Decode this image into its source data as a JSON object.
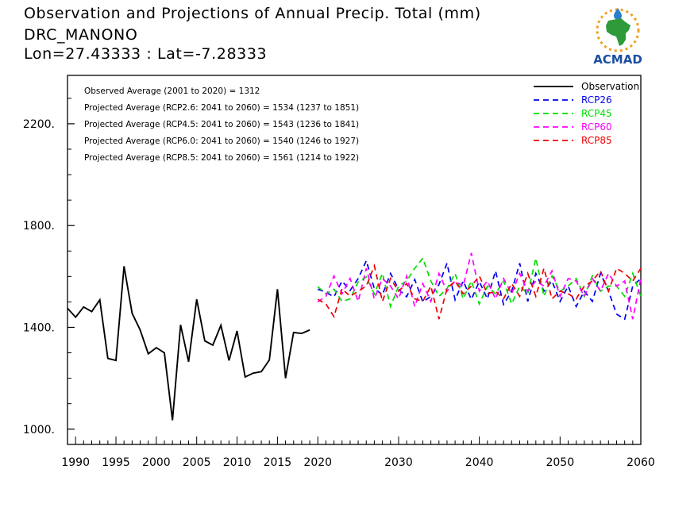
{
  "header": {
    "title": "Observation and Projections of Annual Precip. Total (mm)",
    "location": "DRC_MANONO",
    "coords": "Lon=27.43333 : Lat=-7.28333"
  },
  "logo": {
    "text": "ACMAD",
    "icon": "africa-sun-logo",
    "color": "#1a4fa0"
  },
  "chart_data": {
    "type": "line",
    "xlim": [
      1989,
      2060
    ],
    "ylim": [
      940,
      2390
    ],
    "yticks": [
      1000,
      1400,
      1800,
      2200
    ],
    "ytick_labels": [
      "1000.",
      "1400.",
      "1800.",
      "2200."
    ],
    "xticks": [
      1990,
      1995,
      2000,
      2005,
      2010,
      2015,
      2020,
      2030,
      2040,
      2050,
      2060
    ],
    "xtick_labels": [
      "1990",
      "1995",
      "2000",
      "2005",
      "2010",
      "2015",
      "2020",
      "2030",
      "2040",
      "2050",
      "2060"
    ],
    "legend_position": "top-right",
    "annotations": [
      "Observed Average (2001 to 2020) = 1312",
      "Projected Average (RCP2.6: 2041 to 2060) = 1534 (1237 to 1851)",
      "Projected Average (RCP4.5: 2041 to 2060) = 1543 (1236 to 1841)",
      "Projected Average (RCP6.0: 2041 to 2060) = 1540 (1246 to 1927)",
      "Projected Average (RCP8.5: 2041 to 2060) = 1561 (1214 to 1922)"
    ],
    "observation": {
      "name": "Observation",
      "color": "#000000",
      "x": [
        1989,
        1990,
        1991,
        1992,
        1993,
        1994,
        1995,
        1996,
        1997,
        1998,
        1999,
        2000,
        2001,
        2002,
        2003,
        2004,
        2005,
        2006,
        2007,
        2008,
        2009,
        2010,
        2011,
        2012,
        2013,
        2014,
        2015,
        2016,
        2017,
        2018,
        2019
      ],
      "y": [
        1475,
        1440,
        1480,
        1462,
        1508,
        1278,
        1270,
        1640,
        1455,
        1390,
        1296,
        1320,
        1300,
        1035,
        1410,
        1265,
        1510,
        1347,
        1330,
        1408,
        1270,
        1386,
        1205,
        1220,
        1226,
        1272,
        1550,
        1200,
        1380,
        1376,
        1390
      ]
    },
    "series": [
      {
        "name": "RCP26",
        "color": "#0000ee",
        "x": [
          2020,
          2021,
          2022,
          2023,
          2024,
          2025,
          2026,
          2027,
          2028,
          2029,
          2030,
          2031,
          2032,
          2033,
          2034,
          2035,
          2036,
          2037,
          2038,
          2039,
          2040,
          2041,
          2042,
          2043,
          2044,
          2045,
          2046,
          2047,
          2048,
          2049,
          2050,
          2051,
          2052,
          2053,
          2054,
          2055,
          2056,
          2057,
          2058,
          2059,
          2060
        ],
        "y": [
          1550,
          1538,
          1520,
          1582,
          1545,
          1592,
          1662,
          1552,
          1528,
          1612,
          1550,
          1520,
          1588,
          1500,
          1522,
          1568,
          1652,
          1508,
          1582,
          1510,
          1580,
          1512,
          1622,
          1490,
          1542,
          1652,
          1502,
          1612,
          1542,
          1582,
          1502,
          1562,
          1482,
          1542,
          1502,
          1612,
          1542,
          1452,
          1432,
          1562,
          1592
        ]
      },
      {
        "name": "RCP45",
        "color": "#00dd00",
        "x": [
          2020,
          2021,
          2022,
          2023,
          2024,
          2025,
          2026,
          2027,
          2028,
          2029,
          2030,
          2031,
          2032,
          2033,
          2034,
          2035,
          2036,
          2037,
          2038,
          2039,
          2040,
          2041,
          2042,
          2043,
          2044,
          2045,
          2046,
          2047,
          2048,
          2049,
          2050,
          2051,
          2052,
          2053,
          2054,
          2055,
          2056,
          2057,
          2058,
          2059,
          2060
        ],
        "y": [
          1560,
          1532,
          1550,
          1502,
          1512,
          1578,
          1598,
          1532,
          1612,
          1482,
          1562,
          1582,
          1632,
          1672,
          1582,
          1522,
          1552,
          1612,
          1512,
          1582,
          1492,
          1562,
          1532,
          1582,
          1492,
          1562,
          1532,
          1672,
          1522,
          1602,
          1542,
          1562,
          1592,
          1522,
          1602,
          1542,
          1562,
          1562,
          1522,
          1612,
          1522
        ]
      },
      {
        "name": "RCP60",
        "color": "#ff00ff",
        "x": [
          2020,
          2021,
          2022,
          2023,
          2024,
          2025,
          2026,
          2027,
          2028,
          2029,
          2030,
          2031,
          2032,
          2033,
          2034,
          2035,
          2036,
          2037,
          2038,
          2039,
          2040,
          2041,
          2042,
          2043,
          2044,
          2045,
          2046,
          2047,
          2048,
          2049,
          2050,
          2051,
          2052,
          2053,
          2054,
          2055,
          2056,
          2057,
          2058,
          2059,
          2060
        ],
        "y": [
          1500,
          1522,
          1602,
          1532,
          1592,
          1502,
          1632,
          1512,
          1592,
          1562,
          1512,
          1602,
          1482,
          1572,
          1502,
          1612,
          1542,
          1582,
          1562,
          1692,
          1542,
          1582,
          1512,
          1592,
          1532,
          1612,
          1542,
          1582,
          1562,
          1622,
          1522,
          1592,
          1582,
          1522,
          1592,
          1542,
          1612,
          1562,
          1582,
          1432,
          1592
        ]
      },
      {
        "name": "RCP85",
        "color": "#ee0000",
        "x": [
          2020,
          2021,
          2022,
          2023,
          2024,
          2025,
          2026,
          2027,
          2028,
          2029,
          2030,
          2031,
          2032,
          2033,
          2034,
          2035,
          2036,
          2037,
          2038,
          2039,
          2040,
          2041,
          2042,
          2043,
          2044,
          2045,
          2046,
          2047,
          2048,
          2049,
          2050,
          2051,
          2052,
          2053,
          2054,
          2055,
          2056,
          2057,
          2058,
          2059,
          2060
        ],
        "y": [
          1510,
          1492,
          1442,
          1552,
          1522,
          1542,
          1562,
          1642,
          1502,
          1592,
          1542,
          1572,
          1512,
          1502,
          1562,
          1432,
          1552,
          1582,
          1532,
          1562,
          1602,
          1532,
          1542,
          1512,
          1572,
          1522,
          1612,
          1522,
          1632,
          1512,
          1542,
          1532,
          1512,
          1562,
          1582,
          1622,
          1542,
          1632,
          1612,
          1582,
          1632
        ]
      }
    ]
  }
}
